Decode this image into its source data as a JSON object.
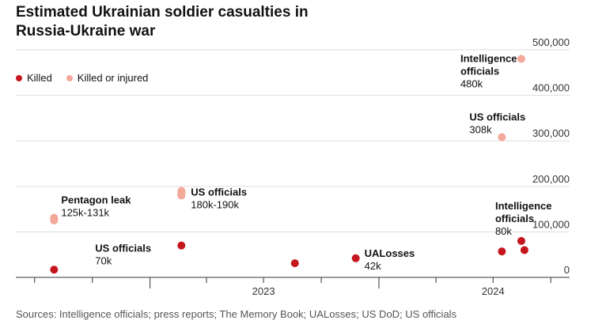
{
  "title": "Estimated Ukrainian soldier casualties in Russia-Ukraine war",
  "source": "Sources: Intelligence officials; press reports; The Memory Book; UALosses; US DoD; US officials",
  "legend": [
    {
      "label": "Killed",
      "color": "#c5161d"
    },
    {
      "label": "Killed or injured",
      "color": "#f4a89a"
    }
  ],
  "chart_data": {
    "type": "scatter",
    "x_axis": {
      "type": "date",
      "range": [
        "2022-06-01",
        "2024-10-31"
      ],
      "tick_labels": [
        "2023",
        "2024"
      ]
    },
    "y_axis": {
      "range": [
        0,
        500000
      ],
      "ticks": [
        0,
        100000,
        200000,
        300000,
        400000,
        500000
      ],
      "tick_labels": [
        "0",
        "100,000",
        "200,000",
        "300,000",
        "400,000",
        "500,000"
      ],
      "position": "right"
    },
    "grid": true,
    "legend_position": "top-left",
    "series": [
      {
        "name": "Killed",
        "color": "#c5161d",
        "points": [
          {
            "x": "2022-08-01",
            "y": 17000
          },
          {
            "x": "2023-02-20",
            "y": 70000
          },
          {
            "x": "2023-08-20",
            "y": 31000
          },
          {
            "x": "2023-11-25",
            "y": 42000
          },
          {
            "x": "2024-07-15",
            "y": 57000
          },
          {
            "x": "2024-08-15",
            "y": 80000
          },
          {
            "x": "2024-08-20",
            "y": 60000
          }
        ]
      },
      {
        "name": "Killed or injured",
        "color": "#f4a89a",
        "points": [
          {
            "x": "2022-08-01",
            "y": 125000,
            "y_high": 131000
          },
          {
            "x": "2023-02-20",
            "y": 180000,
            "y_high": 190000
          },
          {
            "x": "2024-07-15",
            "y": 308000
          },
          {
            "x": "2024-08-15",
            "y": 480000
          }
        ]
      }
    ],
    "annotations": [
      {
        "title": "Pentagon leak",
        "value": "125k-131k"
      },
      {
        "title": "US officials",
        "value": "180k-190k"
      },
      {
        "title": "US officials",
        "value": "70k"
      },
      {
        "title": "UALosses",
        "value": "42k"
      },
      {
        "title": "Intelligence officials",
        "value": "480k"
      },
      {
        "title": "US officials",
        "value": "308k"
      },
      {
        "title": "Intelligence officials",
        "value": "80k"
      }
    ]
  }
}
